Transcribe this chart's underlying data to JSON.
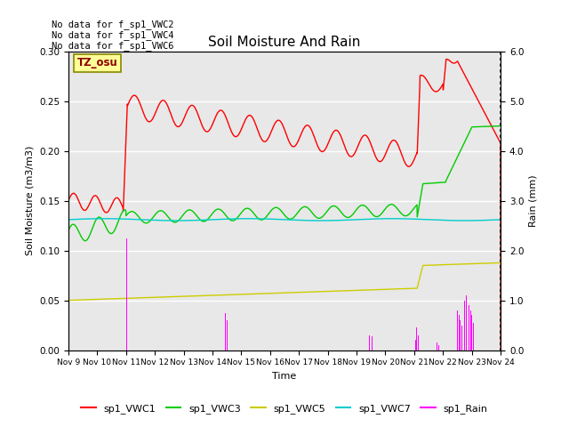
{
  "title": "Soil Moisture And Rain",
  "ylabel_left": "Soil Moisture (m3/m3)",
  "ylabel_right": "Rain (mm)",
  "xlabel": "Time",
  "xlim": [
    0,
    15
  ],
  "ylim_left": [
    0.0,
    0.3
  ],
  "ylim_right": [
    0.0,
    6.0
  ],
  "bg_color": "#e8e8e8",
  "no_data_texts": [
    "No data for f_sp1_VWC2",
    "No data for f_sp1_VWC4",
    "No data for f_sp1_VWC6"
  ],
  "tz_label": "TZ_osu",
  "xtick_labels": [
    "Nov 9",
    "Nov 10",
    "Nov 11",
    "Nov 12",
    "Nov 13",
    "Nov 14",
    "Nov 15",
    "Nov 16",
    "Nov 17",
    "Nov 18",
    "Nov 19",
    "Nov 20",
    "Nov 21",
    "Nov 22",
    "Nov 23",
    "Nov 24"
  ],
  "line_colors": {
    "vwc1": "#ff0000",
    "vwc3": "#00cc00",
    "vwc5": "#cccc00",
    "vwc7": "#00cccc",
    "rain": "#ff00ff"
  },
  "legend_labels": [
    "sp1_VWC1",
    "sp1_VWC3",
    "sp1_VWC5",
    "sp1_VWC7",
    "sp1_Rain"
  ]
}
